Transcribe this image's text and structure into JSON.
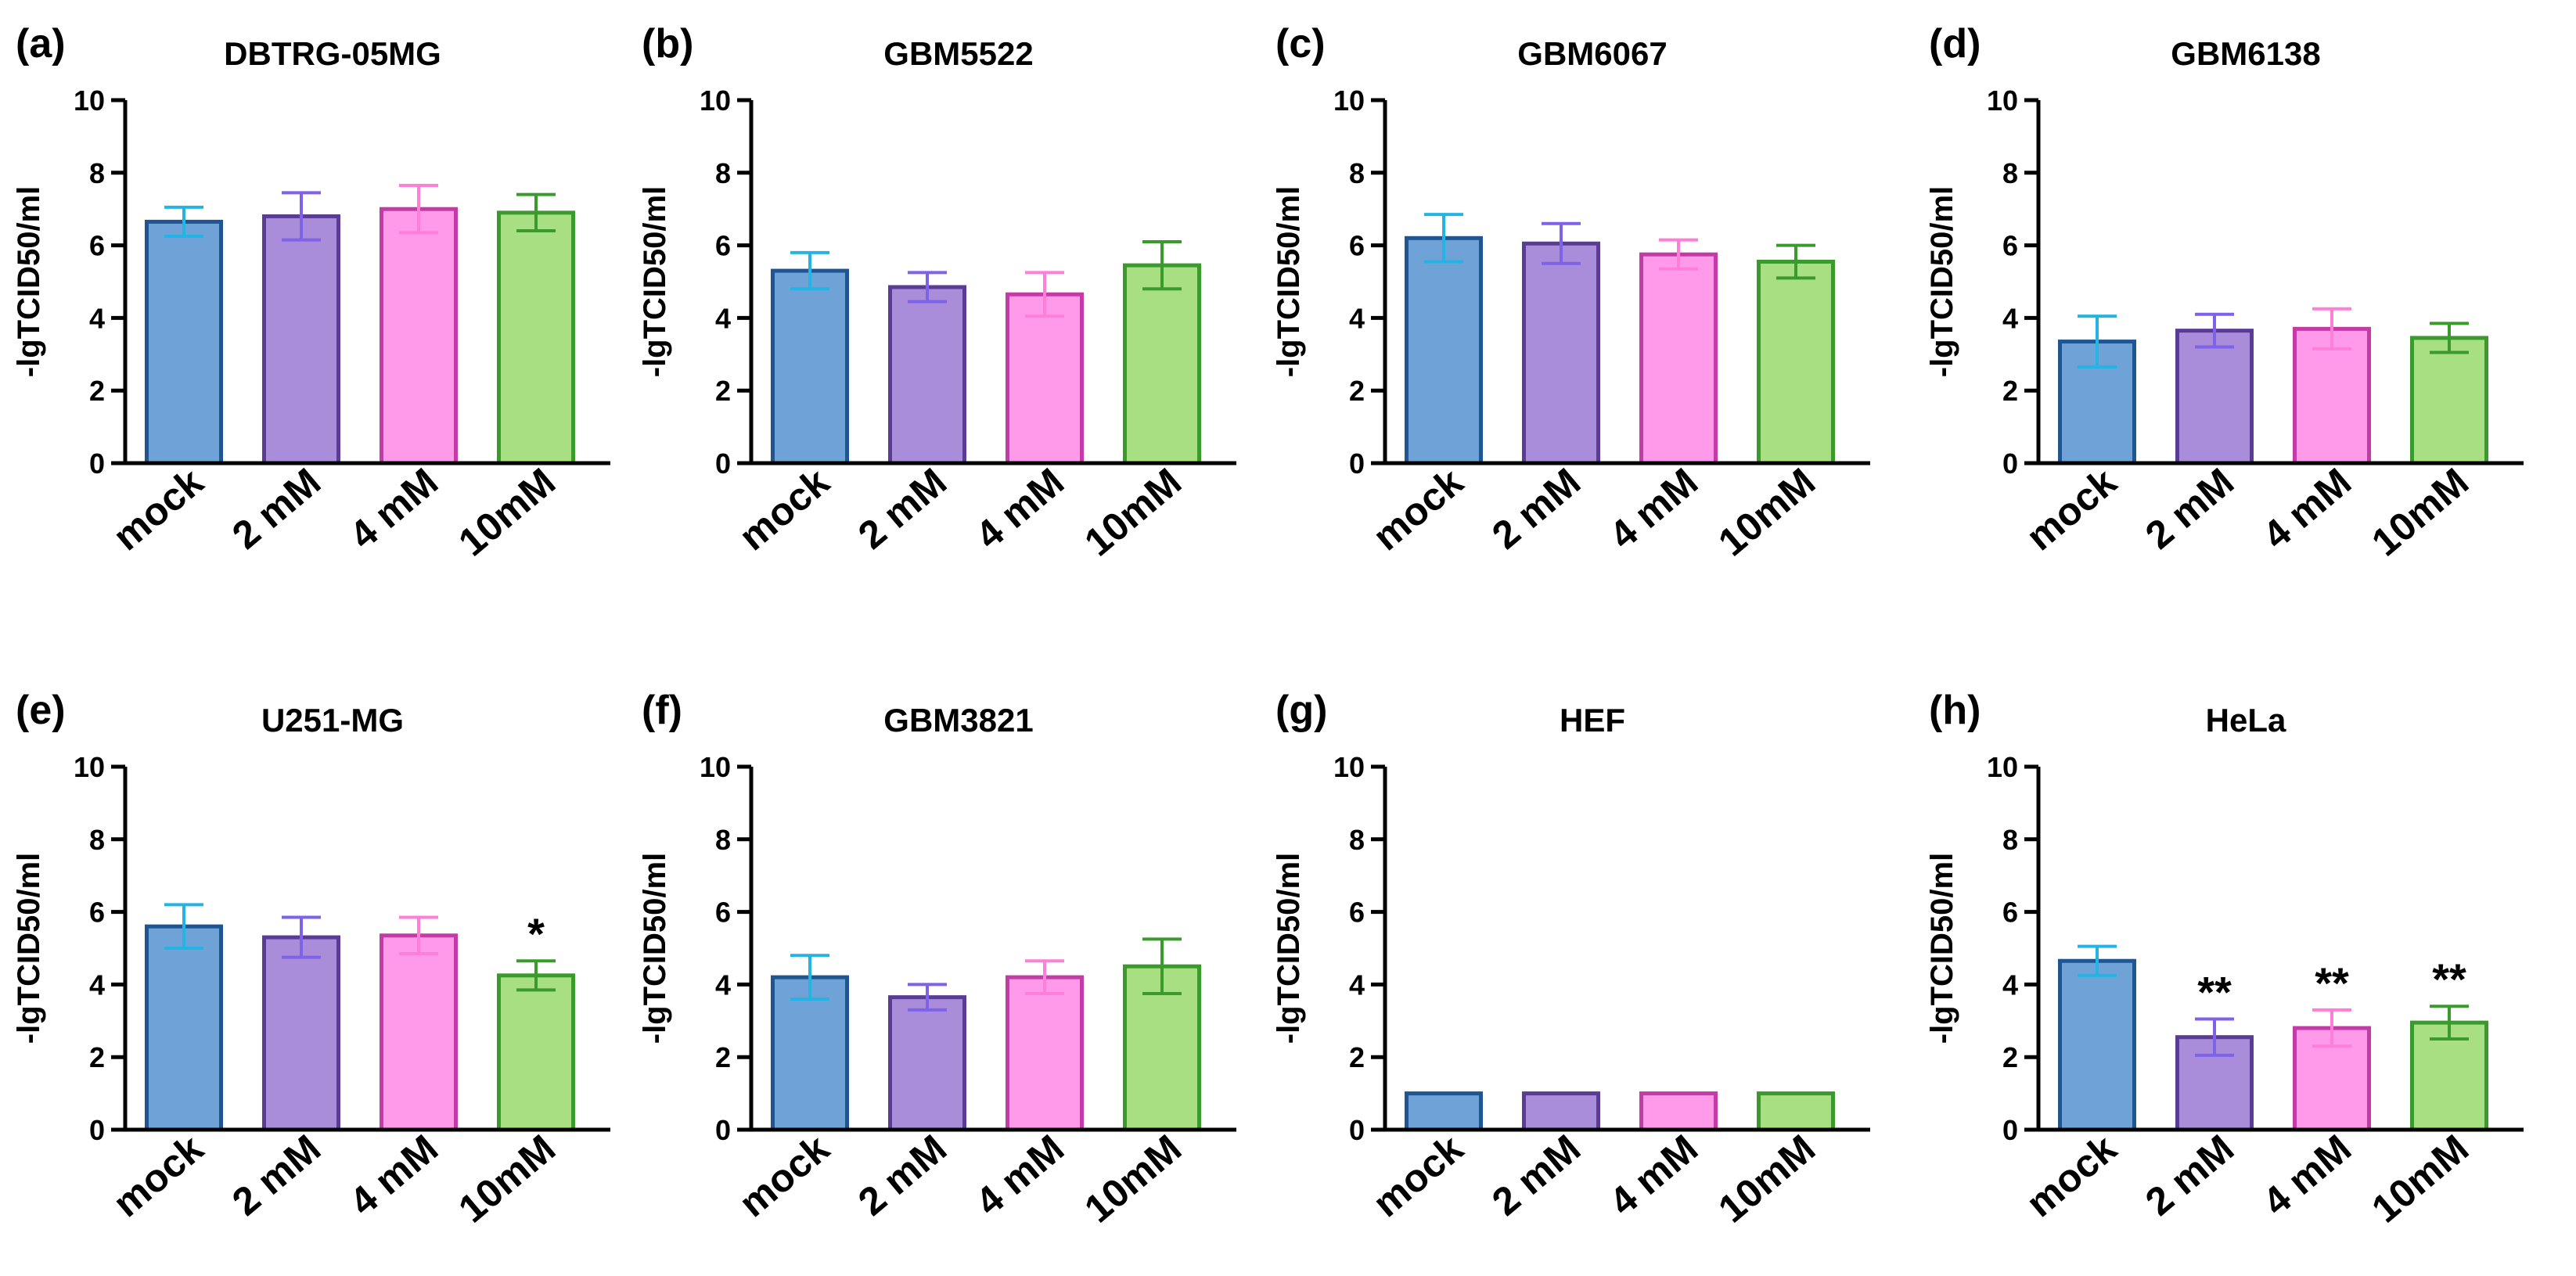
{
  "figure": {
    "bar_styles": [
      {
        "fill": "#6fa3d8",
        "stroke": "#1f5590",
        "err": "#24b4e3"
      },
      {
        "fill": "#a98cda",
        "stroke": "#5b3c95",
        "err": "#7e62e8"
      },
      {
        "fill": "#ff99e9",
        "stroke": "#c43aa6",
        "err": "#ff7fd6"
      },
      {
        "fill": "#a7df82",
        "stroke": "#3a9a2c",
        "err": "#3a9a2c"
      }
    ]
  },
  "chart_data": [
    {
      "type": "bar",
      "panel": "(a)",
      "title": "DBTRG-05MG",
      "ylabel": "-lgTCID50/ml",
      "categories": [
        "mock",
        "2 mM",
        "4 mM",
        "10mM"
      ],
      "values": [
        6.65,
        6.8,
        7.0,
        6.9
      ],
      "errors": [
        0.4,
        0.65,
        0.65,
        0.5
      ],
      "significance": [
        "",
        "",
        "",
        ""
      ],
      "ylim": [
        0,
        10
      ],
      "yticks": [
        "0",
        "2",
        "4",
        "6",
        "8",
        "10"
      ]
    },
    {
      "type": "bar",
      "panel": "(b)",
      "title": "GBM5522",
      "ylabel": "-lgTCID50/ml",
      "categories": [
        "mock",
        "2 mM",
        "4 mM",
        "10mM"
      ],
      "values": [
        5.3,
        4.85,
        4.65,
        5.45
      ],
      "errors": [
        0.5,
        0.4,
        0.6,
        0.65
      ],
      "significance": [
        "",
        "",
        "",
        ""
      ],
      "ylim": [
        0,
        10
      ],
      "yticks": [
        "0",
        "2",
        "4",
        "6",
        "8",
        "10"
      ]
    },
    {
      "type": "bar",
      "panel": "(c)",
      "title": "GBM6067",
      "ylabel": "-lgTCID50/ml",
      "categories": [
        "mock",
        "2 mM",
        "4 mM",
        "10mM"
      ],
      "values": [
        6.2,
        6.05,
        5.75,
        5.55
      ],
      "errors": [
        0.65,
        0.55,
        0.4,
        0.45
      ],
      "significance": [
        "",
        "",
        "",
        ""
      ],
      "ylim": [
        0,
        10
      ],
      "yticks": [
        "0",
        "2",
        "4",
        "6",
        "8",
        "10"
      ]
    },
    {
      "type": "bar",
      "panel": "(d)",
      "title": "GBM6138",
      "ylabel": "-lgTCID50/ml",
      "categories": [
        "mock",
        "2 mM",
        "4 mM",
        "10mM"
      ],
      "values": [
        3.35,
        3.65,
        3.7,
        3.45
      ],
      "errors": [
        0.7,
        0.45,
        0.55,
        0.4
      ],
      "significance": [
        "",
        "",
        "",
        ""
      ],
      "ylim": [
        0,
        10
      ],
      "yticks": [
        "0",
        "2",
        "4",
        "6",
        "8",
        "10"
      ]
    },
    {
      "type": "bar",
      "panel": "(e)",
      "title": "U251-MG",
      "ylabel": "-lgTCID50/ml",
      "categories": [
        "mock",
        "2 mM",
        "4 mM",
        "10mM"
      ],
      "values": [
        5.6,
        5.3,
        5.35,
        4.25
      ],
      "errors": [
        0.6,
        0.55,
        0.5,
        0.4
      ],
      "significance": [
        "",
        "",
        "",
        "*"
      ],
      "ylim": [
        0,
        10
      ],
      "yticks": [
        "0",
        "2",
        "4",
        "6",
        "8",
        "10"
      ]
    },
    {
      "type": "bar",
      "panel": "(f)",
      "title": "GBM3821",
      "ylabel": "-lgTCID50/ml",
      "categories": [
        "mock",
        "2 mM",
        "4 mM",
        "10mM"
      ],
      "values": [
        4.2,
        3.65,
        4.2,
        4.5
      ],
      "errors": [
        0.6,
        0.35,
        0.45,
        0.75
      ],
      "significance": [
        "",
        "",
        "",
        ""
      ],
      "ylim": [
        0,
        10
      ],
      "yticks": [
        "0",
        "2",
        "4",
        "6",
        "8",
        "10"
      ]
    },
    {
      "type": "bar",
      "panel": "(g)",
      "title": "HEF",
      "ylabel": "-lgTCID50/ml",
      "categories": [
        "mock",
        "2 mM",
        "4 mM",
        "10mM"
      ],
      "values": [
        1,
        1,
        1,
        1
      ],
      "errors": [
        0,
        0,
        0,
        0
      ],
      "significance": [
        "",
        "",
        "",
        ""
      ],
      "ylim": [
        0,
        10
      ],
      "yticks": [
        "0",
        "2",
        "4",
        "6",
        "8",
        "10"
      ]
    },
    {
      "type": "bar",
      "panel": "(h)",
      "title": "HeLa",
      "ylabel": "-lgTCID50/ml",
      "categories": [
        "mock",
        "2 mM",
        "4 mM",
        "10mM"
      ],
      "values": [
        4.65,
        2.55,
        2.8,
        2.95
      ],
      "errors": [
        0.4,
        0.5,
        0.5,
        0.45
      ],
      "significance": [
        "",
        "**",
        "**",
        "**"
      ],
      "ylim": [
        0,
        10
      ],
      "yticks": [
        "0",
        "2",
        "4",
        "6",
        "8",
        "10"
      ]
    }
  ]
}
